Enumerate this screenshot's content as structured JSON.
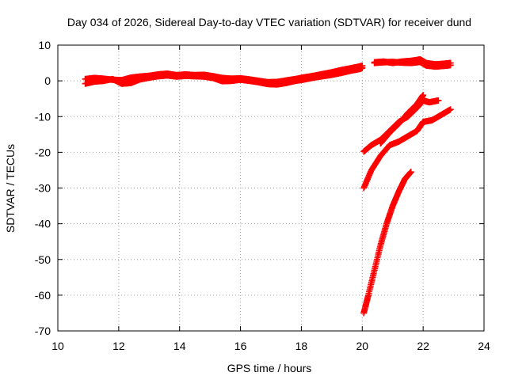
{
  "chart_data": {
    "type": "scatter",
    "title": "Day 034 of 2026, Sidereal Day-to-day VTEC variation (SDTVAR) for receiver dund",
    "xlabel": "GPS time / hours",
    "ylabel": "SDTVAR / TECUs",
    "xlim": [
      10,
      24
    ],
    "ylim": [
      -70,
      10
    ],
    "xticks": [
      "10",
      "12",
      "14",
      "16",
      "18",
      "20",
      "22",
      "24"
    ],
    "yticks": [
      "10",
      "0",
      "-10",
      "-20",
      "-30",
      "-40",
      "-50",
      "-60",
      "-70"
    ],
    "grid": true,
    "legend": "none",
    "marker": "plus",
    "color": "#ff0000",
    "series": [
      {
        "x": [
          10.9,
          11.2,
          11.5,
          11.8,
          12.1,
          12.4,
          12.7,
          13.0,
          13.3,
          13.6,
          13.9,
          14.2,
          14.5,
          14.8,
          15.1,
          15.4,
          15.7,
          16.0,
          16.3,
          16.6,
          16.9,
          17.2,
          17.5,
          17.8,
          18.1,
          18.4,
          18.7,
          19.0,
          19.3,
          19.6,
          19.9,
          20.0
        ],
        "y": [
          0.5,
          0.8,
          0.6,
          0.3,
          0.2,
          0.9,
          1.2,
          1.4,
          1.8,
          2.0,
          1.6,
          1.8,
          1.6,
          1.7,
          1.3,
          0.8,
          0.6,
          0.7,
          0.4,
          0.0,
          -0.4,
          -0.3,
          0.1,
          0.5,
          1.0,
          1.4,
          1.9,
          2.4,
          3.0,
          3.5,
          4.0,
          4.2
        ]
      },
      {
        "x": [
          10.9,
          11.2,
          11.5,
          11.8,
          12.1,
          12.4,
          12.7,
          13.0,
          13.3,
          13.6,
          13.9,
          14.2,
          14.5,
          14.8,
          15.1,
          15.4,
          15.7,
          16.0,
          16.3,
          16.6,
          16.9,
          17.2,
          17.5,
          17.8,
          18.1,
          18.4,
          18.7,
          19.0,
          19.3,
          19.6,
          19.9,
          20.0
        ],
        "y": [
          -0.8,
          -0.2,
          0.0,
          0.5,
          -0.8,
          -0.6,
          0.4,
          0.9,
          1.3,
          1.5,
          1.2,
          1.4,
          1.3,
          1.2,
          0.8,
          -0.1,
          0.0,
          0.3,
          0.0,
          -0.4,
          -0.9,
          -1.0,
          -0.6,
          0.0,
          0.4,
          0.9,
          1.3,
          1.7,
          2.2,
          2.8,
          3.3,
          3.6
        ]
      },
      {
        "x": [
          20.4,
          20.7,
          21.0,
          21.3,
          21.6,
          21.9,
          22.1,
          22.4,
          22.7,
          22.9
        ],
        "y": [
          5.2,
          5.4,
          5.0,
          5.4,
          5.6,
          6.0,
          5.0,
          4.6,
          4.8,
          5.0
        ]
      },
      {
        "x": [
          20.4,
          20.7,
          21.0,
          21.3,
          21.6,
          21.9,
          22.1,
          22.4,
          22.7,
          22.9
        ],
        "y": [
          5.0,
          5.2,
          5.3,
          5.1,
          5.0,
          5.3,
          4.3,
          4.0,
          4.2,
          4.4
        ]
      },
      {
        "x": [
          20.05,
          20.3,
          20.6,
          20.9,
          21.2,
          21.5,
          21.8,
          22.0,
          22.2,
          22.5
        ],
        "y": [
          -19.8,
          -18.0,
          -16.5,
          -14.0,
          -11.5,
          -10.0,
          -7.5,
          -5.5,
          -6.0,
          -5.5
        ]
      },
      {
        "x": [
          20.6,
          20.9,
          21.2,
          21.5,
          21.8,
          22.0
        ],
        "y": [
          -17.5,
          -14.5,
          -12.0,
          -9.0,
          -6.5,
          -4.0
        ]
      },
      {
        "x": [
          20.05,
          20.3,
          20.6,
          20.9,
          21.2,
          21.5,
          21.8,
          22.0,
          22.3,
          22.6,
          22.9
        ],
        "y": [
          -30.0,
          -25.0,
          -21.0,
          -18.0,
          -17.0,
          -15.5,
          -14.0,
          -11.5,
          -11.0,
          -9.5,
          -8.0
        ]
      },
      {
        "x": [
          20.05,
          20.2,
          20.4,
          20.6,
          20.8,
          21.0,
          21.2,
          21.4,
          21.6
        ],
        "y": [
          -65.0,
          -60.0,
          -53.0,
          -46.0,
          -40.0,
          -35.0,
          -31.0,
          -27.5,
          -25.5
        ]
      }
    ]
  }
}
